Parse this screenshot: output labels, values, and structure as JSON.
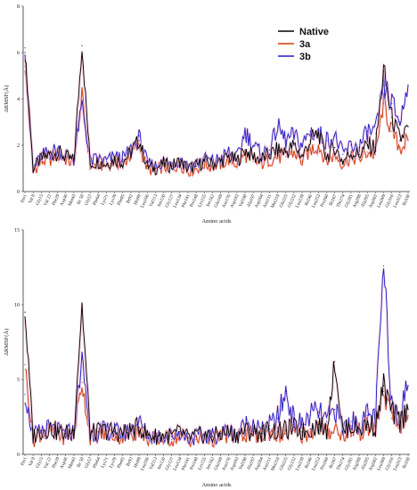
{
  "chart_data": [
    {
      "type": "line",
      "xlabel": "Amino acids",
      "ylabel": "ΔRMSF(Å)",
      "ylim": [
        0,
        8
      ],
      "yticks": [
        0,
        2,
        4,
        6,
        8
      ],
      "legend": {
        "placement": "top-right",
        "entries": [
          "Native",
          "3a",
          "3b"
        ]
      },
      "categories": [
        "Pro1",
        "Val 8",
        "Gly15",
        "Val 22",
        "Phe29",
        "Asp36",
        "Met43",
        "Ile 50",
        "Gly57",
        "Phe64",
        "Lys71",
        "Lys78",
        "Phe85",
        "Ile92",
        "His99",
        "Leu106",
        "Val113",
        "Ser120",
        "Gly127",
        "Leu134",
        "Phe141",
        "Pro148",
        "Lys155",
        "Ser162",
        "Glu169",
        "Asn176",
        "Asp183",
        "Val190",
        "Ala197",
        "Asp204",
        "Asn211",
        "Met218",
        "Gln225",
        "Gly232",
        "Leu239",
        "Ile246",
        "Leu253",
        "Pro260",
        "Ile267",
        "Thr274",
        "Gly281",
        "Arg288",
        "Ala295",
        "Asp302",
        "Leu309",
        "Gly316",
        "Leu323",
        "Ile330"
      ],
      "series": [
        {
          "name": "Native",
          "color": "#000000",
          "values": [
            6.0,
            1.0,
            1.4,
            1.6,
            1.7,
            1.5,
            1.3,
            6.3,
            1.2,
            1.3,
            1.2,
            1.4,
            1.3,
            1.7,
            2.2,
            1.1,
            1.0,
            1.2,
            1.1,
            1.3,
            1.0,
            1.1,
            1.3,
            1.2,
            1.3,
            1.5,
            1.3,
            1.8,
            1.5,
            1.4,
            1.6,
            1.8,
            1.7,
            2.0,
            1.5,
            2.2,
            2.5,
            1.5,
            1.9,
            1.3,
            1.7,
            1.6,
            2.0,
            1.9,
            5.2,
            3.2,
            2.2,
            2.8
          ]
        },
        {
          "name": "3a",
          "color": "#d23a00",
          "values": [
            5.4,
            0.9,
            1.3,
            1.4,
            1.6,
            1.4,
            1.2,
            4.2,
            1.1,
            1.2,
            1.1,
            1.3,
            1.2,
            1.6,
            2.0,
            1.0,
            0.9,
            1.1,
            1.0,
            1.2,
            0.9,
            1.0,
            1.2,
            1.1,
            1.2,
            1.4,
            1.2,
            1.6,
            1.3,
            1.2,
            1.4,
            1.5,
            1.5,
            1.7,
            1.3,
            1.8,
            2.0,
            1.3,
            1.6,
            1.2,
            1.5,
            1.4,
            1.7,
            1.6,
            3.8,
            2.6,
            1.9,
            2.2
          ]
        },
        {
          "name": "3b",
          "color": "#1e1ec8",
          "values": [
            6.2,
            1.0,
            1.5,
            1.7,
            1.8,
            1.6,
            1.4,
            3.8,
            1.3,
            1.4,
            1.3,
            1.5,
            1.4,
            1.8,
            2.4,
            1.2,
            1.1,
            1.3,
            1.2,
            1.4,
            1.1,
            1.2,
            1.4,
            1.3,
            1.4,
            1.7,
            1.4,
            2.6,
            2.0,
            1.6,
            1.8,
            2.8,
            2.2,
            2.4,
            2.0,
            2.6,
            2.5,
            2.2,
            2.4,
            1.6,
            2.0,
            1.9,
            2.6,
            2.5,
            4.6,
            3.8,
            3.0,
            4.6
          ]
        }
      ]
    },
    {
      "type": "line",
      "xlabel": "Amino acids",
      "ylabel": "ΔRMSF(Å)",
      "ylim": [
        0,
        15
      ],
      "yticks": [
        0,
        5,
        10,
        15
      ],
      "yticklabels": [
        "0",
        "5",
        "10",
        "15"
      ],
      "categories": [
        "Pro1",
        "Val 8",
        "Gly15",
        "Val 22",
        "Phe29",
        "Asp36",
        "Met43",
        "Ile 50",
        "Gly57",
        "Phe64",
        "Lys71",
        "Lys78",
        "Phe85",
        "Ile92",
        "His99",
        "Leu106",
        "Val113",
        "Ser120",
        "Gly127",
        "Leu134",
        "Phe141",
        "Pro148",
        "Lys155",
        "Ser162",
        "Glu169",
        "Asn176",
        "Asp183",
        "Val190",
        "Ala197",
        "Asp204",
        "Asn211",
        "Met218",
        "Gln225",
        "Gly232",
        "Leu239",
        "Ile246",
        "Leu253",
        "Pro260",
        "Ile267",
        "Thr274",
        "Gly281",
        "Arg288",
        "Ala295",
        "Asp302",
        "Leu309",
        "Gly316",
        "Leu323",
        "Ile330"
      ],
      "series": [
        {
          "name": "Native",
          "color": "#000000",
          "values": [
            9.5,
            1.2,
            1.6,
            1.8,
            1.5,
            1.4,
            1.6,
            10.0,
            1.4,
            1.5,
            1.6,
            1.5,
            1.4,
            1.6,
            1.8,
            1.3,
            1.2,
            1.3,
            1.2,
            1.5,
            1.1,
            1.2,
            1.3,
            1.2,
            1.4,
            1.5,
            1.3,
            1.6,
            1.5,
            1.4,
            1.7,
            1.5,
            1.6,
            1.8,
            1.5,
            1.7,
            2.0,
            1.6,
            6.2,
            1.5,
            1.9,
            1.7,
            2.0,
            1.9,
            4.6,
            2.8,
            2.2,
            3.0
          ]
        },
        {
          "name": "3a",
          "color": "#d23a00",
          "values": [
            6.0,
            1.0,
            1.4,
            1.6,
            1.3,
            1.2,
            1.4,
            4.8,
            1.2,
            1.3,
            1.4,
            1.3,
            1.2,
            1.4,
            1.6,
            1.1,
            1.0,
            1.1,
            1.0,
            1.3,
            1.0,
            1.0,
            1.1,
            1.0,
            1.2,
            1.3,
            1.1,
            1.4,
            1.3,
            1.2,
            1.5,
            1.3,
            1.4,
            1.6,
            1.3,
            1.5,
            1.8,
            1.4,
            1.8,
            1.3,
            1.6,
            1.5,
            1.8,
            1.7,
            4.2,
            2.4,
            2.0,
            2.6
          ]
        },
        {
          "name": "3b",
          "color": "#1e1ec8",
          "values": [
            4.0,
            1.2,
            1.6,
            1.7,
            1.5,
            1.4,
            1.5,
            6.4,
            1.4,
            1.5,
            1.6,
            1.5,
            1.4,
            1.6,
            2.2,
            1.3,
            1.2,
            1.3,
            1.2,
            1.5,
            1.1,
            1.2,
            1.3,
            1.2,
            1.4,
            1.6,
            1.3,
            2.0,
            2.2,
            1.5,
            1.9,
            2.4,
            4.2,
            2.2,
            2.0,
            2.6,
            2.8,
            2.2,
            3.0,
            1.8,
            2.2,
            2.0,
            2.6,
            2.4,
            12.6,
            3.4,
            2.8,
            4.6
          ]
        }
      ]
    }
  ]
}
